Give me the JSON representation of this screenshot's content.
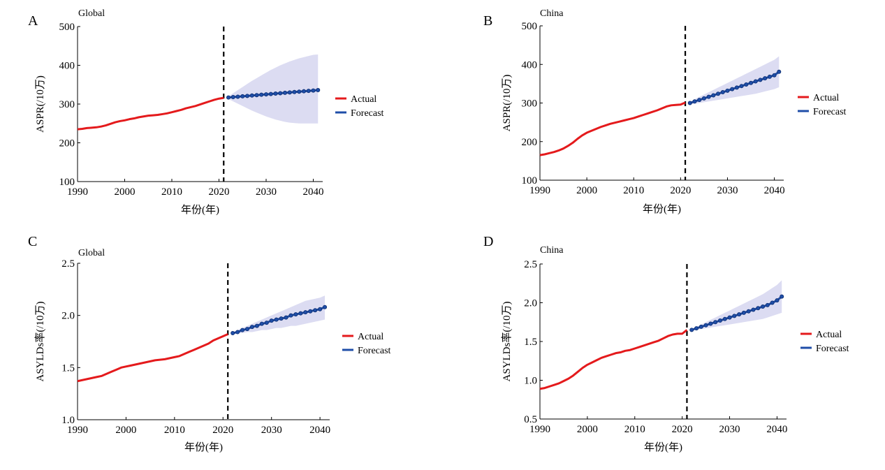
{
  "figure": {
    "forecast_band_color": "#dcdcf2"
  },
  "chart_data": [
    {
      "panel": "A",
      "type": "line",
      "title": "Global",
      "xlabel": "年份(年)",
      "ylabel": "ASPR(/10万)",
      "xlim": [
        1990,
        2042
      ],
      "ylim": [
        100,
        500
      ],
      "xticks": [
        1990,
        2000,
        2010,
        2020,
        2030,
        2040
      ],
      "yticks": [
        100,
        200,
        300,
        400,
        500
      ],
      "ytick_labels": [
        "100",
        "200",
        "300",
        "400",
        "500"
      ],
      "divider_x": 2021,
      "legend_position": "right",
      "series": [
        {
          "name": "Actual",
          "color": "#e41a1c",
          "x": [
            1990,
            1991,
            1992,
            1993,
            1994,
            1995,
            1996,
            1997,
            1998,
            1999,
            2000,
            2001,
            2002,
            2003,
            2004,
            2005,
            2006,
            2007,
            2008,
            2009,
            2010,
            2011,
            2012,
            2013,
            2014,
            2015,
            2016,
            2017,
            2018,
            2019,
            2020,
            2021
          ],
          "y": [
            235,
            236,
            238,
            239,
            240,
            242,
            245,
            249,
            253,
            256,
            258,
            261,
            263,
            266,
            268,
            270,
            271,
            272,
            274,
            276,
            279,
            282,
            285,
            289,
            292,
            295,
            299,
            303,
            307,
            311,
            314,
            316
          ]
        },
        {
          "name": "Forecast",
          "color": "#1f4ea8",
          "x": [
            2022,
            2023,
            2024,
            2025,
            2026,
            2027,
            2028,
            2029,
            2030,
            2031,
            2032,
            2033,
            2034,
            2035,
            2036,
            2037,
            2038,
            2039,
            2040,
            2041
          ],
          "y": [
            317,
            318,
            319,
            320,
            321,
            322,
            323,
            324,
            325,
            326,
            327,
            328,
            329,
            330,
            331,
            332,
            333,
            334,
            335,
            336
          ],
          "lower": [
            313,
            307,
            301,
            295,
            289,
            283,
            278,
            273,
            268,
            264,
            260,
            257,
            254,
            252,
            251,
            250,
            250,
            250,
            250,
            250
          ],
          "upper": [
            320,
            328,
            336,
            344,
            352,
            360,
            367,
            374,
            381,
            388,
            394,
            400,
            405,
            410,
            414,
            418,
            421,
            424,
            427,
            428
          ]
        }
      ]
    },
    {
      "panel": "B",
      "type": "line",
      "title": "China",
      "xlabel": "年份(年)",
      "ylabel": "ASPR(/10万)",
      "xlim": [
        1990,
        2042
      ],
      "ylim": [
        100,
        500
      ],
      "xticks": [
        1990,
        2000,
        2010,
        2020,
        2030,
        2040
      ],
      "yticks": [
        100,
        200,
        300,
        400,
        500
      ],
      "ytick_labels": [
        "100",
        "200",
        "300",
        "400",
        "500"
      ],
      "divider_x": 2021,
      "legend_position": "right",
      "series": [
        {
          "name": "Actual",
          "color": "#e41a1c",
          "x": [
            1990,
            1991,
            1992,
            1993,
            1994,
            1995,
            1996,
            1997,
            1998,
            1999,
            2000,
            2001,
            2002,
            2003,
            2004,
            2005,
            2006,
            2007,
            2008,
            2009,
            2010,
            2011,
            2012,
            2013,
            2014,
            2015,
            2016,
            2017,
            2018,
            2019,
            2020,
            2021
          ],
          "y": [
            165,
            167,
            170,
            173,
            177,
            182,
            189,
            197,
            207,
            216,
            223,
            228,
            233,
            238,
            242,
            246,
            249,
            252,
            255,
            258,
            261,
            265,
            269,
            273,
            277,
            281,
            286,
            291,
            294,
            295,
            296,
            301
          ]
        },
        {
          "name": "Forecast",
          "color": "#1f4ea8",
          "x": [
            2022,
            2023,
            2024,
            2025,
            2026,
            2027,
            2028,
            2029,
            2030,
            2031,
            2032,
            2033,
            2034,
            2035,
            2036,
            2037,
            2038,
            2039,
            2040,
            2041
          ],
          "y": [
            300,
            304,
            308,
            312,
            316,
            320,
            324,
            328,
            332,
            336,
            340,
            344,
            348,
            352,
            356,
            360,
            364,
            368,
            372,
            381
          ],
          "lower": [
            297,
            298,
            300,
            302,
            304,
            306,
            308,
            310,
            312,
            314,
            316,
            318,
            320,
            322,
            324,
            327,
            330,
            333,
            336,
            341
          ],
          "upper": [
            303,
            310,
            316,
            322,
            328,
            334,
            340,
            346,
            352,
            358,
            364,
            370,
            376,
            382,
            388,
            394,
            400,
            406,
            412,
            421
          ]
        }
      ]
    },
    {
      "panel": "C",
      "type": "line",
      "title": "Global",
      "xlabel": "年份(年)",
      "ylabel": "ASYLDs率(/10万)",
      "xlim": [
        1990,
        2042
      ],
      "ylim": [
        1.0,
        2.5
      ],
      "xticks": [
        1990,
        2000,
        2010,
        2020,
        2030,
        2040
      ],
      "yticks": [
        1.0,
        1.5,
        2.0,
        2.5
      ],
      "ytick_labels": [
        "1.0",
        "1.5",
        "2.0",
        "2.5"
      ],
      "divider_x": 2021,
      "legend_position": "right",
      "series": [
        {
          "name": "Actual",
          "color": "#e41a1c",
          "x": [
            1990,
            1991,
            1992,
            1993,
            1994,
            1995,
            1996,
            1997,
            1998,
            1999,
            2000,
            2001,
            2002,
            2003,
            2004,
            2005,
            2006,
            2007,
            2008,
            2009,
            2010,
            2011,
            2012,
            2013,
            2014,
            2015,
            2016,
            2017,
            2018,
            2019,
            2020,
            2021
          ],
          "y": [
            1.37,
            1.38,
            1.39,
            1.4,
            1.41,
            1.42,
            1.44,
            1.46,
            1.48,
            1.5,
            1.51,
            1.52,
            1.53,
            1.54,
            1.55,
            1.56,
            1.57,
            1.575,
            1.58,
            1.59,
            1.6,
            1.61,
            1.63,
            1.65,
            1.67,
            1.69,
            1.71,
            1.73,
            1.76,
            1.78,
            1.8,
            1.82
          ]
        },
        {
          "name": "Forecast",
          "color": "#1f4ea8",
          "x": [
            2022,
            2023,
            2024,
            2025,
            2026,
            2027,
            2028,
            2029,
            2030,
            2031,
            2032,
            2033,
            2034,
            2035,
            2036,
            2037,
            2038,
            2039,
            2040,
            2041
          ],
          "y": [
            1.83,
            1.84,
            1.86,
            1.87,
            1.89,
            1.9,
            1.92,
            1.93,
            1.95,
            1.96,
            1.97,
            1.98,
            2.0,
            2.01,
            2.02,
            2.03,
            2.04,
            2.05,
            2.06,
            2.08
          ],
          "lower": [
            1.82,
            1.83,
            1.83,
            1.84,
            1.84,
            1.85,
            1.86,
            1.86,
            1.87,
            1.88,
            1.88,
            1.89,
            1.9,
            1.9,
            1.91,
            1.92,
            1.93,
            1.94,
            1.95,
            1.96
          ],
          "upper": [
            1.84,
            1.86,
            1.88,
            1.9,
            1.92,
            1.94,
            1.96,
            1.98,
            2.0,
            2.02,
            2.04,
            2.06,
            2.08,
            2.1,
            2.12,
            2.14,
            2.15,
            2.16,
            2.17,
            2.19
          ]
        }
      ]
    },
    {
      "panel": "D",
      "type": "line",
      "title": "China",
      "xlabel": "年份(年)",
      "ylabel": "ASYLDs率(/10万)",
      "xlim": [
        1990,
        2042
      ],
      "ylim": [
        0.5,
        2.5
      ],
      "xticks": [
        1990,
        2000,
        2010,
        2020,
        2030,
        2040
      ],
      "yticks": [
        0.5,
        1.0,
        1.5,
        2.0,
        2.5
      ],
      "ytick_labels": [
        "0.5",
        "1.0",
        "1.5",
        "2.0",
        "2.5"
      ],
      "divider_x": 2021,
      "legend_position": "right",
      "series": [
        {
          "name": "Actual",
          "color": "#e41a1c",
          "x": [
            1990,
            1991,
            1992,
            1993,
            1994,
            1995,
            1996,
            1997,
            1998,
            1999,
            2000,
            2001,
            2002,
            2003,
            2004,
            2005,
            2006,
            2007,
            2008,
            2009,
            2010,
            2011,
            2012,
            2013,
            2014,
            2015,
            2016,
            2017,
            2018,
            2019,
            2020,
            2021
          ],
          "y": [
            0.89,
            0.9,
            0.92,
            0.94,
            0.96,
            0.99,
            1.02,
            1.06,
            1.11,
            1.16,
            1.2,
            1.23,
            1.26,
            1.29,
            1.31,
            1.33,
            1.35,
            1.36,
            1.38,
            1.39,
            1.41,
            1.43,
            1.45,
            1.47,
            1.49,
            1.51,
            1.54,
            1.57,
            1.59,
            1.6,
            1.6,
            1.65
          ]
        },
        {
          "name": "Forecast",
          "color": "#1f4ea8",
          "x": [
            2022,
            2023,
            2024,
            2025,
            2026,
            2027,
            2028,
            2029,
            2030,
            2031,
            2032,
            2033,
            2034,
            2035,
            2036,
            2037,
            2038,
            2039,
            2040,
            2041
          ],
          "y": [
            1.65,
            1.67,
            1.69,
            1.71,
            1.73,
            1.75,
            1.77,
            1.79,
            1.81,
            1.83,
            1.85,
            1.87,
            1.89,
            1.91,
            1.93,
            1.95,
            1.97,
            2.0,
            2.03,
            2.08
          ],
          "lower": [
            1.64,
            1.65,
            1.66,
            1.67,
            1.68,
            1.69,
            1.7,
            1.71,
            1.72,
            1.73,
            1.74,
            1.75,
            1.76,
            1.77,
            1.78,
            1.79,
            1.81,
            1.83,
            1.85,
            1.87
          ],
          "upper": [
            1.66,
            1.69,
            1.72,
            1.75,
            1.78,
            1.81,
            1.84,
            1.87,
            1.9,
            1.93,
            1.96,
            1.99,
            2.02,
            2.05,
            2.08,
            2.11,
            2.15,
            2.19,
            2.23,
            2.29
          ]
        }
      ]
    }
  ]
}
